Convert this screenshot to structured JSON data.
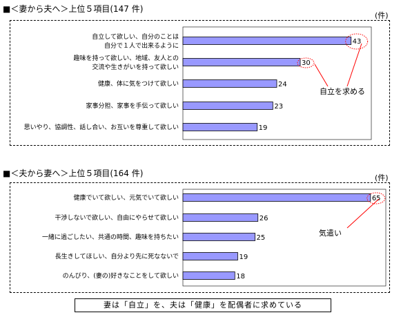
{
  "chart_data": [
    {
      "type": "bar",
      "orientation": "horizontal",
      "title": "■＜妻から夫へ＞上位５項目(147 件)",
      "unit": "(件)",
      "categories": [
        [
          "自立して欲しい、自分のことは",
          "自分で１人で出来るように"
        ],
        [
          "趣味を持って欲しい、地域、友人との",
          "交流や生きがいを持って欲しい"
        ],
        [
          "健康、体に気をつけて欲しい"
        ],
        [
          "家事分担、家事を手伝って欲しい"
        ],
        [
          "思いやり、協調性、話し合い、お互いを尊重して欲しい"
        ]
      ],
      "values": [
        43,
        30,
        24,
        23,
        19
      ],
      "annotation": "自立を求める",
      "annotated_bars": [
        0,
        1
      ],
      "bar_color": "#9999ff",
      "xlim": [
        0,
        45
      ]
    },
    {
      "type": "bar",
      "orientation": "horizontal",
      "title": "■＜夫から妻へ＞上位５項目(164 件)",
      "unit": "(件)",
      "categories": [
        [
          "健康でいて欲しい、元気でいて欲しい"
        ],
        [
          "干渉しないで欲しい、自由にやらせて欲しい"
        ],
        [
          "一緒に過ごしたい、共通の時間、趣味を持ちたい"
        ],
        [
          "長生きしてほしい、自分より先に死なないで"
        ],
        [
          "のんびり、(妻の)好きなことをして欲しい"
        ]
      ],
      "values": [
        65,
        26,
        25,
        19,
        18
      ],
      "annotation": "気遣い",
      "annotated_bars": [
        0
      ],
      "bar_color": "#9999ff",
      "xlim": [
        0,
        66
      ]
    }
  ],
  "summary": "妻は「自立」を、夫は「健康」を配偶者に求めている"
}
